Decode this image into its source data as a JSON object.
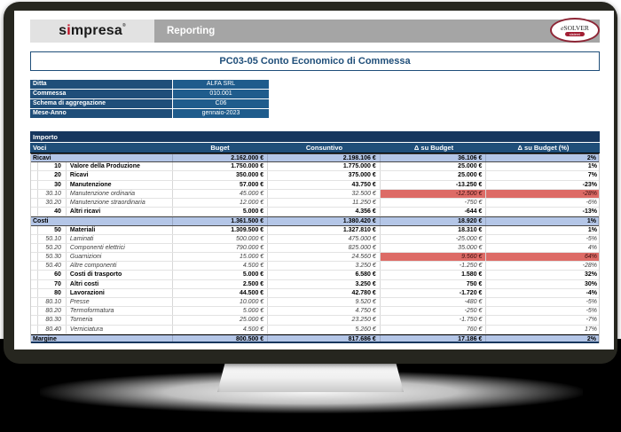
{
  "header": {
    "brand": "simpresa",
    "brand_mark": "®",
    "tab": "Reporting",
    "vendor_logo": {
      "name": "eSOLVER",
      "sub": "sistemi"
    }
  },
  "title": "PC03-05 Conto Economico di Commessa",
  "filters": {
    "rows": [
      {
        "label": "Ditta",
        "value": "ALFA SRL",
        "dropdown": true
      },
      {
        "label": "Commessa",
        "value": "010.001",
        "dropdown": false
      },
      {
        "label": "Schema di aggregazione",
        "value": "C06",
        "dropdown": false
      },
      {
        "label": "Mese-Anno",
        "value": "gennaio-2023",
        "dropdown": false
      }
    ]
  },
  "table": {
    "group_label": "Importo",
    "columns": [
      "Voci",
      "Buget",
      "Consuntivo",
      "Δ su Budget",
      "Δ su Budget (%)"
    ],
    "rows": [
      {
        "type": "section",
        "label": "Ricavi",
        "budget": "2.162.000 €",
        "consuntivo": "2.198.106 €",
        "delta": "36.106 €",
        "delta_pct": "2%",
        "highlight": false
      },
      {
        "type": "item",
        "code": "10",
        "label": "Valore della Produzione",
        "budget": "1.750.000 €",
        "consuntivo": "1.775.000 €",
        "delta": "25.000 €",
        "delta_pct": "1%",
        "highlight": false
      },
      {
        "type": "item",
        "code": "20",
        "label": "Ricavi",
        "budget": "350.000 €",
        "consuntivo": "375.000 €",
        "delta": "25.000 €",
        "delta_pct": "7%",
        "highlight": false
      },
      {
        "type": "item",
        "code": "30",
        "label": "Manutenzione",
        "budget": "57.000 €",
        "consuntivo": "43.750 €",
        "delta": "-13.250 €",
        "delta_pct": "-23%",
        "highlight": false
      },
      {
        "type": "subitem",
        "code": "30.10",
        "label": "Manutenzione ordinaria",
        "budget": "45.000 €",
        "consuntivo": "32.500 €",
        "delta": "-12.500 €",
        "delta_pct": "-28%",
        "highlight": true
      },
      {
        "type": "subitem",
        "code": "30.20",
        "label": "Manutenzione straordinaria",
        "budget": "12.000 €",
        "consuntivo": "11.250 €",
        "delta": "-750 €",
        "delta_pct": "-6%",
        "highlight": false
      },
      {
        "type": "item",
        "code": "40",
        "label": "Altri ricavi",
        "budget": "5.000 €",
        "consuntivo": "4.356 €",
        "delta": "-644 €",
        "delta_pct": "-13%",
        "highlight": false
      },
      {
        "type": "section",
        "label": "Costi",
        "budget": "1.361.500 €",
        "consuntivo": "1.380.420 €",
        "delta": "18.920 €",
        "delta_pct": "1%",
        "highlight": false
      },
      {
        "type": "item",
        "code": "50",
        "label": "Materiali",
        "budget": "1.309.500 €",
        "consuntivo": "1.327.810 €",
        "delta": "18.310 €",
        "delta_pct": "1%",
        "highlight": false
      },
      {
        "type": "subitem",
        "code": "50.10",
        "label": "Laminati",
        "budget": "500.000 €",
        "consuntivo": "475.000 €",
        "delta": "-25.000 €",
        "delta_pct": "-5%",
        "highlight": false
      },
      {
        "type": "subitem",
        "code": "50.20",
        "label": "Componenti elettrici",
        "budget": "790.000 €",
        "consuntivo": "825.000 €",
        "delta": "35.000 €",
        "delta_pct": "4%",
        "highlight": false
      },
      {
        "type": "subitem",
        "code": "50.30",
        "label": "Guarnizioni",
        "budget": "15.000 €",
        "consuntivo": "24.560 €",
        "delta": "9.560 €",
        "delta_pct": "64%",
        "highlight": true
      },
      {
        "type": "subitem",
        "code": "50.40",
        "label": "Altre componenti",
        "budget": "4.500 €",
        "consuntivo": "3.250 €",
        "delta": "-1.250 €",
        "delta_pct": "-28%",
        "highlight": false
      },
      {
        "type": "item",
        "code": "60",
        "label": "Costi di trasporto",
        "budget": "5.000 €",
        "consuntivo": "6.580 €",
        "delta": "1.580 €",
        "delta_pct": "32%",
        "highlight": false
      },
      {
        "type": "item",
        "code": "70",
        "label": "Altri costi",
        "budget": "2.500 €",
        "consuntivo": "3.250 €",
        "delta": "750 €",
        "delta_pct": "30%",
        "highlight": false
      },
      {
        "type": "item",
        "code": "80",
        "label": "Lavorazioni",
        "budget": "44.500 €",
        "consuntivo": "42.780 €",
        "delta": "-1.720 €",
        "delta_pct": "-4%",
        "highlight": false
      },
      {
        "type": "subitem",
        "code": "80.10",
        "label": "Presse",
        "budget": "10.000 €",
        "consuntivo": "9.520 €",
        "delta": "-480 €",
        "delta_pct": "-5%",
        "highlight": false
      },
      {
        "type": "subitem",
        "code": "80.20",
        "label": "Termoformatura",
        "budget": "5.000 €",
        "consuntivo": "4.750 €",
        "delta": "-250 €",
        "delta_pct": "-5%",
        "highlight": false
      },
      {
        "type": "subitem",
        "code": "80.30",
        "label": "Torneria",
        "budget": "25.000 €",
        "consuntivo": "23.250 €",
        "delta": "-1.750 €",
        "delta_pct": "-7%",
        "highlight": false
      },
      {
        "type": "subitem",
        "code": "80.40",
        "label": "Verniciatura",
        "budget": "4.500 €",
        "consuntivo": "5.260 €",
        "delta": "760 €",
        "delta_pct": "17%",
        "highlight": false
      },
      {
        "type": "total",
        "label": "Margine",
        "budget": "800.500 €",
        "consuntivo": "817.686 €",
        "delta": "17.186 €",
        "delta_pct": "2%",
        "highlight": false
      }
    ]
  },
  "colors": {
    "accent_dark_blue": "#1f4e79",
    "group_bar_blue": "#17375e",
    "field_blue": "#1f5c8c",
    "section_row_blue": "#b4c6e7",
    "highlight_red": "#dd6b66",
    "brand_red": "#c00a1e"
  }
}
